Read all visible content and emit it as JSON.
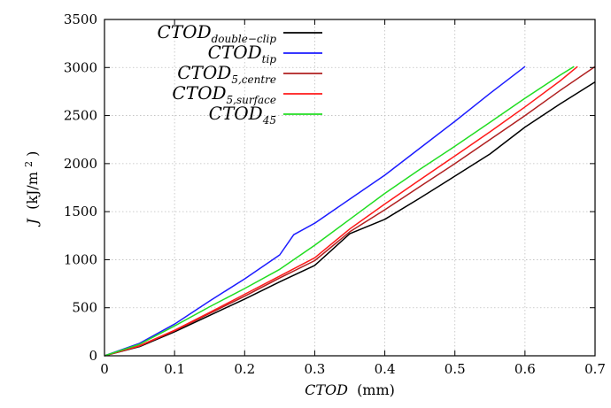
{
  "chart_data": {
    "type": "line",
    "title": "",
    "xlabel": {
      "main": "CTOD",
      "unit": "(mm)"
    },
    "ylabel": {
      "main": "J",
      "unit": "(kJ/m",
      "sup": "2",
      "close": ")"
    },
    "xlim": [
      0,
      0.7
    ],
    "ylim": [
      0,
      3500
    ],
    "xticks": [
      0,
      0.1,
      0.2,
      0.3,
      0.4,
      0.5,
      0.6,
      0.7
    ],
    "yticks": [
      0,
      500,
      1000,
      1500,
      2000,
      2500,
      3000,
      3500
    ],
    "xtick_labels": [
      "0",
      "0.1",
      "0.2",
      "0.3",
      "0.4",
      "0.5",
      "0.6",
      "0.7"
    ],
    "ytick_labels": [
      "0",
      "500",
      "1000",
      "1500",
      "2000",
      "2500",
      "3000",
      "3500"
    ],
    "grid": true,
    "legend_position": "top-left",
    "series": [
      {
        "name": "CTOD",
        "name_sub": "double−clip",
        "color": "#000000",
        "x": [
          0,
          0.05,
          0.1,
          0.15,
          0.2,
          0.25,
          0.3,
          0.35,
          0.4,
          0.45,
          0.5,
          0.55,
          0.6,
          0.65,
          0.7
        ],
        "y": [
          0,
          95,
          250,
          420,
          590,
          770,
          940,
          1270,
          1420,
          1640,
          1870,
          2100,
          2380,
          2620,
          2850
        ]
      },
      {
        "name": "CTOD",
        "name_sub": "tip",
        "color": "#1c1cff",
        "x": [
          0,
          0.05,
          0.1,
          0.15,
          0.2,
          0.25,
          0.27,
          0.3,
          0.35,
          0.4,
          0.45,
          0.5,
          0.55,
          0.6
        ],
        "y": [
          0,
          130,
          330,
          570,
          800,
          1050,
          1260,
          1380,
          1630,
          1880,
          2160,
          2440,
          2730,
          3010
        ]
      },
      {
        "name": "CTOD",
        "name_sub": "5,centre",
        "color": "#b02020",
        "x": [
          0,
          0.05,
          0.1,
          0.15,
          0.2,
          0.25,
          0.3,
          0.35,
          0.4,
          0.45,
          0.5,
          0.55,
          0.6,
          0.65,
          0.7
        ],
        "y": [
          0,
          100,
          260,
          440,
          620,
          810,
          990,
          1290,
          1520,
          1760,
          2000,
          2250,
          2500,
          2760,
          3010
        ]
      },
      {
        "name": "CTOD",
        "name_sub": "5,surface",
        "color": "#ff1a1a",
        "x": [
          0,
          0.05,
          0.1,
          0.15,
          0.2,
          0.25,
          0.3,
          0.35,
          0.4,
          0.45,
          0.5,
          0.55,
          0.6,
          0.65,
          0.675
        ],
        "y": [
          0,
          105,
          265,
          450,
          640,
          830,
          1020,
          1320,
          1580,
          1830,
          2080,
          2330,
          2590,
          2860,
          3010
        ]
      },
      {
        "name": "CTOD",
        "name_sub": "45",
        "color": "#22dd22",
        "x": [
          0,
          0.05,
          0.1,
          0.15,
          0.2,
          0.25,
          0.3,
          0.35,
          0.4,
          0.45,
          0.5,
          0.55,
          0.6,
          0.65,
          0.67
        ],
        "y": [
          0,
          120,
          310,
          510,
          700,
          900,
          1150,
          1420,
          1690,
          1940,
          2180,
          2430,
          2680,
          2920,
          3010
        ]
      }
    ]
  }
}
